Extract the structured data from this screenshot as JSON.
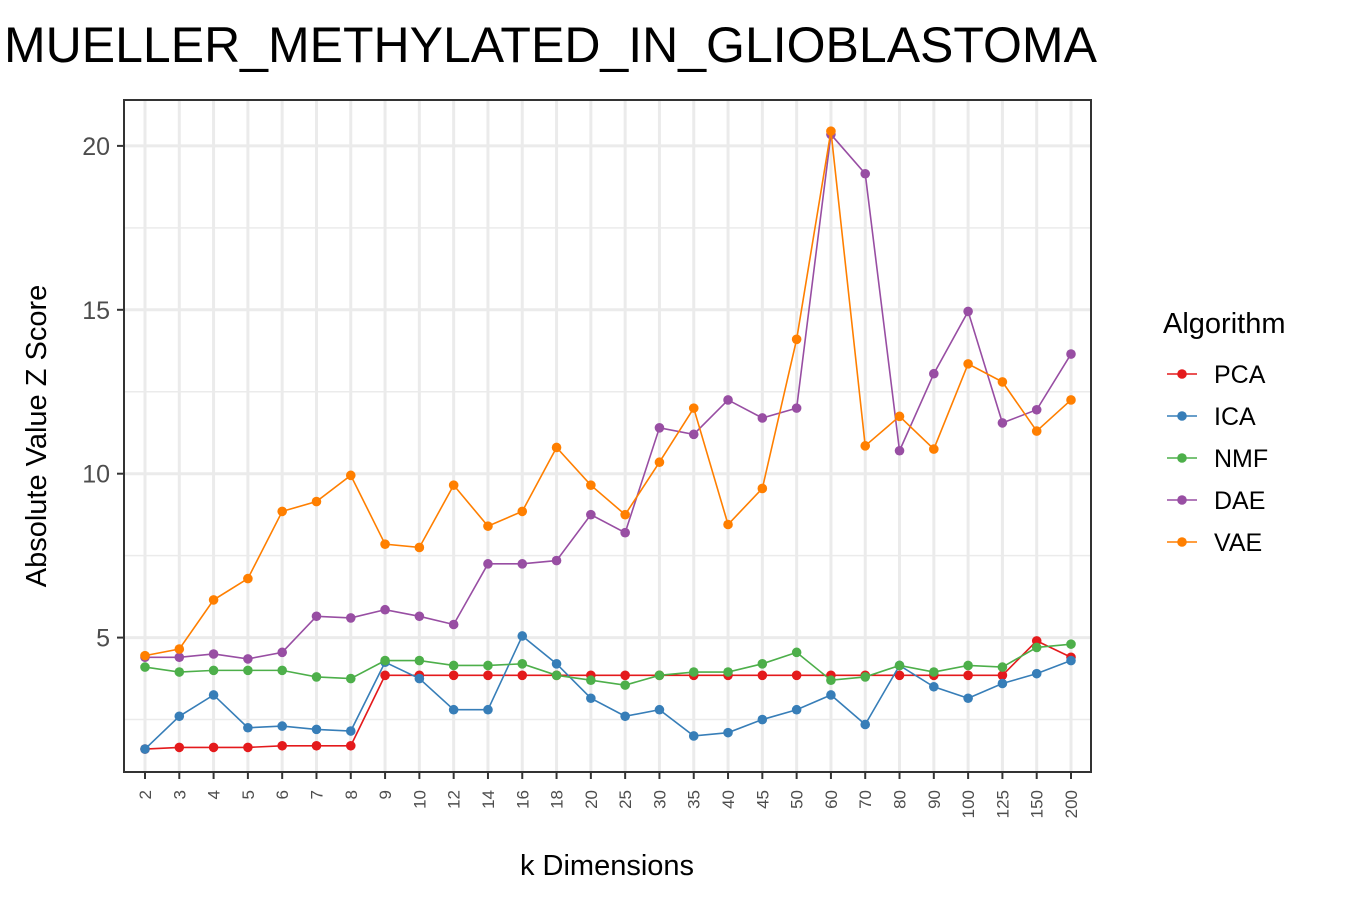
{
  "chart_data": {
    "type": "line",
    "title": "MUELLER_METHYLATED_IN_GLIOBLASTOMA",
    "xlabel": "k Dimensions",
    "ylabel": "Absolute Value Z Score",
    "categories": [
      "2",
      "3",
      "4",
      "5",
      "6",
      "7",
      "8",
      "9",
      "10",
      "12",
      "14",
      "16",
      "18",
      "20",
      "25",
      "30",
      "35",
      "40",
      "45",
      "50",
      "60",
      "70",
      "80",
      "90",
      "100",
      "125",
      "150",
      "200"
    ],
    "ylim": [
      0.9,
      21.4
    ],
    "yticks": [
      5,
      10,
      15,
      20
    ],
    "grid": true,
    "legend": {
      "title": "Algorithm",
      "placement": "right"
    },
    "series": [
      {
        "name": "PCA",
        "color": "#e41a1c",
        "values": [
          1.6,
          1.65,
          1.65,
          1.65,
          1.7,
          1.7,
          1.7,
          3.85,
          3.85,
          3.85,
          3.85,
          3.85,
          3.85,
          3.85,
          3.85,
          3.85,
          3.85,
          3.85,
          3.85,
          3.85,
          3.85,
          3.85,
          3.85,
          3.85,
          3.85,
          3.85,
          4.9,
          4.4
        ]
      },
      {
        "name": "ICA",
        "color": "#377eb8",
        "values": [
          1.6,
          2.6,
          3.25,
          2.25,
          2.3,
          2.2,
          2.15,
          4.25,
          3.75,
          2.8,
          2.8,
          5.05,
          4.2,
          3.15,
          2.6,
          2.8,
          2.0,
          2.1,
          2.5,
          2.8,
          3.25,
          2.35,
          4.15,
          3.5,
          3.15,
          3.6,
          3.9,
          4.3
        ]
      },
      {
        "name": "NMF",
        "color": "#4daf4a",
        "values": [
          4.1,
          3.95,
          4.0,
          4.0,
          4.0,
          3.8,
          3.75,
          4.3,
          4.3,
          4.15,
          4.15,
          4.2,
          3.85,
          3.7,
          3.55,
          3.85,
          3.95,
          3.95,
          4.2,
          4.55,
          3.7,
          3.8,
          4.15,
          3.95,
          4.15,
          4.1,
          4.7,
          4.8
        ]
      },
      {
        "name": "DAE",
        "color": "#984ea3",
        "values": [
          4.4,
          4.4,
          4.5,
          4.35,
          4.55,
          5.65,
          5.6,
          5.85,
          5.65,
          5.4,
          7.25,
          7.25,
          7.35,
          8.75,
          8.2,
          11.4,
          11.2,
          12.25,
          11.7,
          12.0,
          20.35,
          19.15,
          10.7,
          13.05,
          14.95,
          11.55,
          11.95,
          13.65
        ]
      },
      {
        "name": "VAE",
        "color": "#ff7f00",
        "values": [
          4.45,
          4.65,
          6.15,
          6.8,
          8.85,
          9.15,
          9.95,
          7.85,
          7.75,
          9.65,
          8.4,
          8.85,
          10.8,
          9.65,
          8.75,
          10.35,
          12.0,
          8.45,
          9.55,
          14.1,
          20.45,
          10.85,
          11.75,
          10.75,
          13.35,
          12.8,
          11.3,
          12.25
        ]
      }
    ]
  }
}
